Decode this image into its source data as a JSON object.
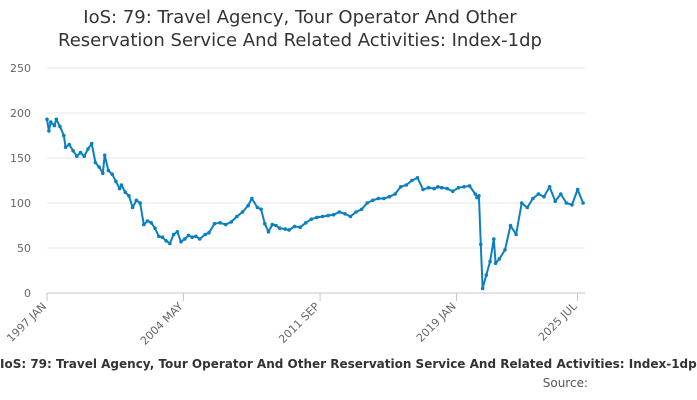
{
  "chart_data": {
    "type": "line",
    "title_lines": [
      "IoS: 79: Travel Agency, Tour Operator And Other",
      "Reservation Service And Related Activities: Index-1dp"
    ],
    "xlabel": "",
    "ylabel": "",
    "ylim": [
      0,
      250
    ],
    "y_ticks": [
      "0",
      "50",
      "100",
      "150",
      "200",
      "250"
    ],
    "x_ticks": [
      "1997 JAN",
      "2004 MAY",
      "2011 SEP",
      "2019 JAN",
      "2025 JUL"
    ],
    "x_tick_years": [
      1997.0,
      2004.33,
      2011.67,
      2019.0,
      2025.5
    ],
    "x_range": [
      1997.0,
      2025.9
    ],
    "grid": true,
    "legend_position": "bottom",
    "series": [
      {
        "name": "IoS: 79: Travel Agency, Tour Operator And Other Reservation Service And Related Activities: Index-1dp",
        "color": "#0a7fc1",
        "x": [
          1997.0,
          1997.1,
          1997.2,
          1997.4,
          1997.5,
          1997.7,
          1997.9,
          1998.0,
          1998.2,
          1998.4,
          1998.6,
          1998.8,
          1999.0,
          1999.2,
          1999.4,
          1999.6,
          1999.8,
          2000.0,
          2000.1,
          2000.3,
          2000.5,
          2000.7,
          2000.9,
          2001.0,
          2001.2,
          2001.4,
          2001.6,
          2001.8,
          2002.0,
          2002.2,
          2002.4,
          2002.6,
          2002.8,
          2003.0,
          2003.2,
          2003.4,
          2003.6,
          2003.8,
          2004.0,
          2004.2,
          2004.4,
          2004.6,
          2004.8,
          2005.0,
          2005.2,
          2005.5,
          2005.7,
          2006.0,
          2006.3,
          2006.6,
          2006.9,
          2007.2,
          2007.5,
          2007.8,
          2008.0,
          2008.3,
          2008.5,
          2008.7,
          2008.9,
          2009.1,
          2009.3,
          2009.5,
          2009.8,
          2010.0,
          2010.3,
          2010.6,
          2010.9,
          2011.2,
          2011.5,
          2011.8,
          2012.1,
          2012.4,
          2012.7,
          2013.0,
          2013.3,
          2013.6,
          2013.9,
          2014.2,
          2014.5,
          2014.8,
          2015.1,
          2015.4,
          2015.7,
          2016.0,
          2016.3,
          2016.6,
          2016.9,
          2017.2,
          2017.5,
          2017.8,
          2018.0,
          2018.2,
          2018.5,
          2018.8,
          2019.1,
          2019.4,
          2019.7,
          2020.0,
          2020.1,
          2020.2,
          2020.3,
          2020.4,
          2020.6,
          2020.8,
          2021.0,
          2021.1,
          2021.3,
          2021.6,
          2021.9,
          2022.2,
          2022.5,
          2022.8,
          2023.1,
          2023.4,
          2023.7,
          2024.0,
          2024.3,
          2024.6,
          2024.9,
          2025.2,
          2025.5,
          2025.8
        ],
        "values": [
          193,
          180,
          190,
          186,
          193,
          185,
          175,
          162,
          165,
          158,
          152,
          156,
          152,
          160,
          166,
          145,
          140,
          133,
          153,
          136,
          132,
          124,
          116,
          120,
          112,
          108,
          95,
          103,
          100,
          76,
          80,
          78,
          72,
          63,
          62,
          58,
          55,
          65,
          68,
          57,
          60,
          64,
          62,
          63,
          60,
          65,
          67,
          77,
          78,
          76,
          79,
          85,
          90,
          97,
          105,
          95,
          93,
          77,
          68,
          76,
          75,
          72,
          71,
          70,
          74,
          73,
          78,
          82,
          84,
          85,
          86,
          87,
          90,
          88,
          85,
          90,
          93,
          100,
          103,
          105,
          105,
          107,
          110,
          118,
          120,
          125,
          128,
          115,
          117,
          116,
          118,
          117,
          116,
          113,
          117,
          118,
          119,
          110,
          106,
          108,
          54,
          5,
          20,
          35,
          60,
          33,
          38,
          48,
          75,
          65,
          100,
          95,
          105,
          110,
          107,
          118,
          102,
          110,
          100,
          98,
          115,
          100
        ]
      }
    ],
    "source_label": "Source:"
  }
}
